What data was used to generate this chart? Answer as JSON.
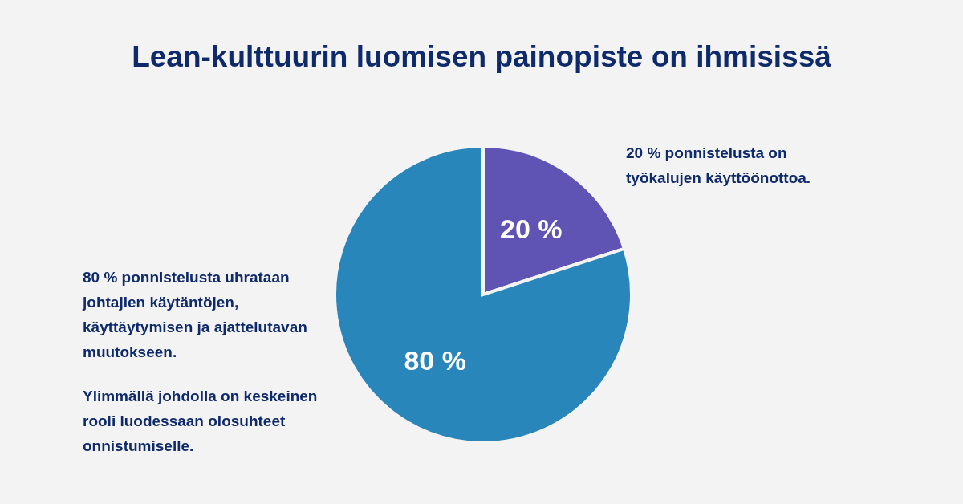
{
  "chart_data": {
    "type": "pie",
    "title": "Lean-kulttuurin luomisen painopiste on ihmisissä",
    "categories": [
      null,
      null
    ],
    "values": [
      20,
      80
    ],
    "colors": [
      "#5f53b3",
      "#2886bb"
    ],
    "value_labels": [
      "20 %",
      "80 %"
    ],
    "annotations": [
      "20 % ponnistelusta on työkalujen käyttöönottoa.",
      "80 % ponnistelusta uhrataan johtajien käytäntöjen, käyttäytymisen ja ajattelutavan muutokseen.",
      "Ylimmällä johdolla on keskeinen rooli luodessaan olosuhteet onnistumiselle."
    ],
    "legend": false
  }
}
